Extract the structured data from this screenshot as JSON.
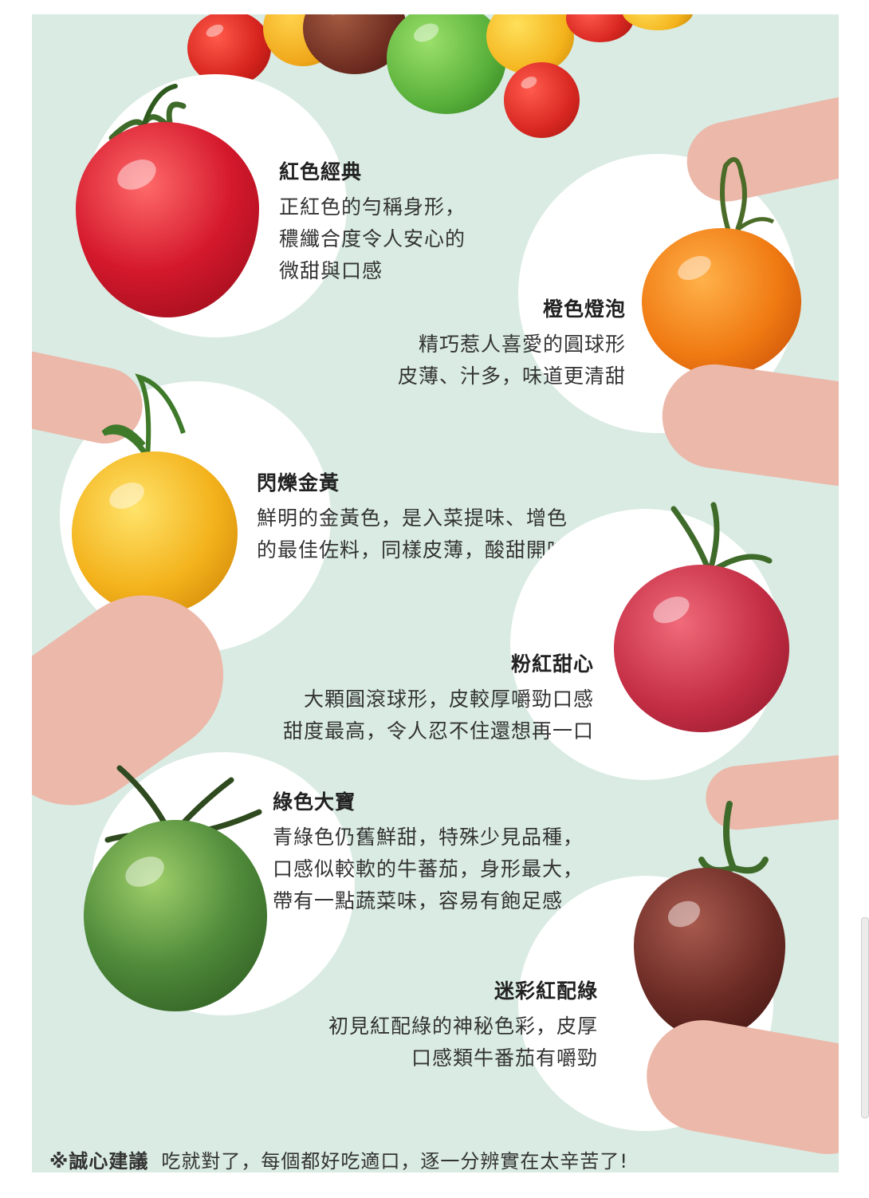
{
  "varieties": [
    {
      "title": "紅色經典",
      "lines": [
        "正紅色的勻稱身形，",
        "穠纖合度令人安心的",
        "微甜與口感"
      ]
    },
    {
      "title": "橙色燈泡",
      "lines": [
        "精巧惹人喜愛的圓球形",
        "皮薄、汁多，味道更清甜"
      ]
    },
    {
      "title": "閃爍金黃",
      "lines": [
        "鮮明的金黃色，是入菜提味、增色",
        "的最佳佐料，同樣皮薄，酸甜開味"
      ]
    },
    {
      "title": "粉紅甜心",
      "lines": [
        "大顆圓滾球形，皮較厚嚼勁口感",
        "甜度最高，令人忍不住還想再一口"
      ]
    },
    {
      "title": "綠色大寶",
      "lines": [
        "青綠色仍舊鮮甜，特殊少見品種，",
        "口感似較軟的牛蕃茄，身形最大，",
        "帶有一點蔬菜味，容易有飽足感"
      ]
    },
    {
      "title": "迷彩紅配綠",
      "lines": [
        "初見紅配綠的神秘色彩，皮厚",
        "口感類牛番茄有嚼勁"
      ]
    }
  ],
  "footer": {
    "label": "※誠心建議",
    "text": "吃就對了，每個都好吃適口，逐一分辨實在太辛苦了!"
  },
  "colors": {
    "background": "#d9ebe3",
    "red": "#c81f2a",
    "orange": "#f07a12",
    "yellow": "#f3b21b",
    "pink": "#c42e44",
    "green": "#4f8a3a",
    "brown": "#6a2a24"
  }
}
